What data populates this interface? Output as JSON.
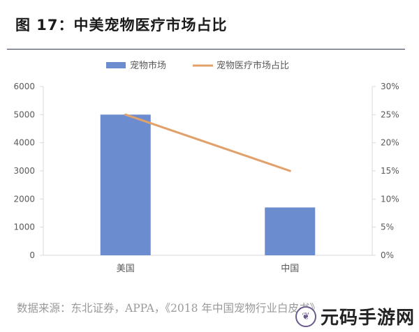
{
  "figure_title": "图 17：中美宠物医疗市场占比",
  "source_note": "数据来源：东北证券，APPA，《2018 年中国宠物行业白皮书》",
  "watermark": {
    "text": "元码手游网",
    "icon": "leaf-badge-icon"
  },
  "colors": {
    "bar": "#6b8cce",
    "line": "#e2a06a",
    "axis": "#d9d9d9",
    "text": "#595959"
  },
  "chart_data": {
    "type": "bar",
    "categories": [
      "美国",
      "中国"
    ],
    "series": [
      {
        "name": "宠物市场",
        "type": "bar",
        "axis": "left",
        "values": [
          5000,
          1700
        ]
      },
      {
        "name": "宠物医疗市场占比",
        "type": "line",
        "axis": "right",
        "values": [
          25,
          15
        ]
      }
    ],
    "y_left": {
      "min": 0,
      "max": 6000,
      "ticks": [
        "0",
        "1000",
        "2000",
        "3000",
        "4000",
        "5000",
        "6000"
      ]
    },
    "y_right": {
      "min": 0,
      "max": 30,
      "ticks": [
        "0%",
        "5%",
        "10%",
        "15%",
        "20%",
        "25%",
        "30%"
      ]
    },
    "legend_position": "top-center",
    "grid": false
  }
}
